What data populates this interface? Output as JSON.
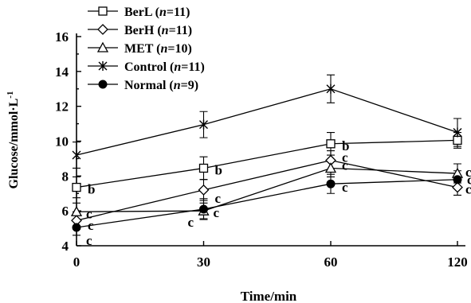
{
  "chart_data": {
    "type": "line",
    "xlabel": "Time/min",
    "ylabel": "Glucose/mmol·L",
    "ylabel_exponent": "-1",
    "x": [
      0,
      30,
      60,
      120
    ],
    "x_tick_labels": [
      "0",
      "30",
      "60",
      "120"
    ],
    "y_ticks": [
      4,
      6,
      8,
      10,
      12,
      14,
      16
    ],
    "y_tick_labels": [
      "4",
      "6",
      "8",
      "10",
      "12",
      "14",
      "16"
    ],
    "ylim": [
      4,
      16
    ],
    "legend_position": "top-left",
    "series": [
      {
        "key": "BerL",
        "legend_name": "BerL",
        "legend_n": "n",
        "legend_count": "=11)",
        "marker": "square-open",
        "values": [
          7.35,
          8.45,
          9.85,
          10.05
        ],
        "errors": [
          0.6,
          0.65,
          0.65,
          0.45
        ],
        "letters": [
          "b",
          "b",
          "b",
          ""
        ]
      },
      {
        "key": "BerH",
        "legend_name": "BerH",
        "legend_n": "n",
        "legend_count": "=11)",
        "marker": "diamond-open",
        "values": [
          5.45,
          7.2,
          8.9,
          7.35
        ],
        "errors": [
          0.5,
          0.6,
          0.55,
          0.45
        ],
        "letters": [
          "c",
          "c",
          "c",
          "c"
        ]
      },
      {
        "key": "MET",
        "legend_name": "MET",
        "legend_n": "n",
        "legend_count": "=10)",
        "marker": "triangle-open",
        "values": [
          5.95,
          6.0,
          8.45,
          8.15
        ],
        "errors": [
          0.5,
          0.45,
          0.5,
          0.55
        ],
        "letters": [
          "c",
          "c",
          "c",
          "c"
        ]
      },
      {
        "key": "Control",
        "legend_name": "Control",
        "legend_n": "n",
        "legend_count": "=11)",
        "marker": "asterisk",
        "values": [
          9.2,
          10.95,
          13.0,
          10.5
        ],
        "errors": [
          0.75,
          0.75,
          0.8,
          0.8
        ],
        "letters": [
          "",
          "",
          "",
          ""
        ]
      },
      {
        "key": "Normal",
        "legend_name": "Normal",
        "legend_n": "n",
        "legend_count": "=9)",
        "marker": "circle-filled",
        "values": [
          5.05,
          6.1,
          7.55,
          7.8
        ],
        "errors": [
          0.45,
          0.6,
          0.55,
          0.5
        ],
        "letters": [
          "c",
          "c",
          "c",
          "c"
        ]
      }
    ]
  }
}
